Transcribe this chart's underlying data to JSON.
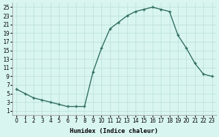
{
  "x": [
    0,
    1,
    2,
    3,
    4,
    5,
    6,
    7,
    8,
    9,
    10,
    11,
    12,
    13,
    14,
    15,
    16,
    17,
    18,
    19,
    20,
    21,
    22,
    23
  ],
  "y": [
    6,
    5,
    4,
    3.5,
    3,
    2.5,
    2,
    2,
    2,
    10,
    15.5,
    20,
    21.5,
    23,
    24,
    24.5,
    25,
    24.5,
    24,
    18.5,
    15.5,
    12,
    9.5,
    9
  ],
  "xlabel": "Humidex (Indice chaleur)",
  "xlim": [
    -0.5,
    23.5
  ],
  "ylim": [
    0,
    26
  ],
  "yticks": [
    1,
    3,
    5,
    7,
    9,
    11,
    13,
    15,
    17,
    19,
    21,
    23,
    25
  ],
  "xticks": [
    0,
    1,
    2,
    3,
    4,
    5,
    6,
    7,
    8,
    9,
    10,
    11,
    12,
    13,
    14,
    15,
    16,
    17,
    18,
    19,
    20,
    21,
    22,
    23
  ],
  "line_color": "#2d6b5e",
  "marker": "+",
  "bg_color": "#d8f5f0",
  "grid_color": "#b8ddd8",
  "label_fontsize": 6.5,
  "tick_fontsize": 5.5
}
